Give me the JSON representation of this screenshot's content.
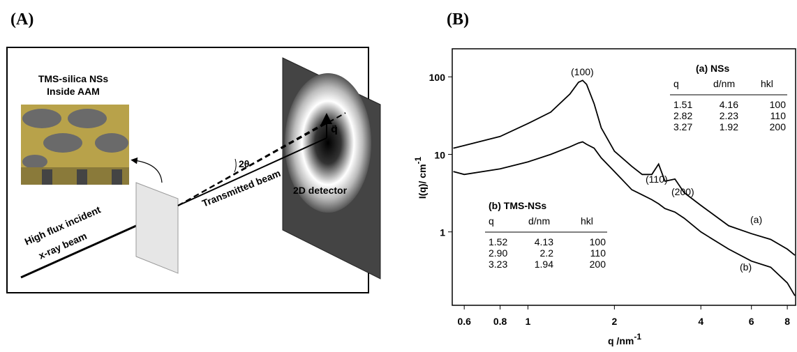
{
  "panel_a": {
    "label": "(A)",
    "sample_title": [
      "TMS-silica NSs",
      "Inside AAM"
    ],
    "incident_beam": [
      "High flux incident",
      "x-ray beam"
    ],
    "transmitted_beam": "Transmitted beam",
    "angle": "2θ",
    "q_vector": "q⃗",
    "detector": "2D detector"
  },
  "chart_data": {
    "type": "line",
    "panel_label": "(B)",
    "x_label": {
      "text": "q /nm",
      "sup": "-1"
    },
    "y_label": {
      "text": "I(q)/ cm",
      "sup": "-1"
    },
    "log_x": true,
    "log_y": true,
    "xlim": [
      0.545,
      8.55
    ],
    "ylim": [
      0.113,
      230
    ],
    "xticks": [
      0.6,
      0.8,
      1,
      2,
      4,
      6,
      8
    ],
    "yticks": [
      1,
      10,
      100
    ],
    "x": [
      0.55,
      0.6,
      0.8,
      1.0,
      1.2,
      1.4,
      1.5,
      1.55,
      1.6,
      1.7,
      1.8,
      2.0,
      2.3,
      2.5,
      2.7,
      2.85,
      3.0,
      3.25,
      3.5,
      4,
      5,
      6,
      7,
      8,
      8.5
    ],
    "series": [
      {
        "name": "(a)",
        "color": "#000000",
        "values": [
          12,
          13,
          17,
          25,
          35,
          60,
          85,
          90,
          80,
          45,
          22,
          11,
          7,
          5.5,
          5.5,
          7.5,
          4.5,
          4.8,
          3.2,
          2.2,
          1.2,
          0.95,
          0.8,
          0.6,
          0.5
        ]
      },
      {
        "name": "(b)",
        "color": "#000000",
        "values": [
          6,
          5.5,
          6.5,
          8,
          10,
          12.5,
          14,
          14.5,
          13.5,
          12,
          9,
          6,
          3.5,
          3.0,
          2.6,
          2.3,
          2.0,
          1.8,
          1.5,
          1.0,
          0.6,
          0.42,
          0.35,
          0.22,
          0.15
        ]
      }
    ],
    "peak_labels": [
      "(100)",
      "(110)",
      "(200)"
    ],
    "tables": [
      {
        "title": "(a) NSs",
        "header": [
          "q",
          "d/nm",
          "hkl"
        ],
        "rows": [
          [
            "1.51",
            "4.16",
            "100"
          ],
          [
            "2.82",
            "2.23",
            "110"
          ],
          [
            "3.27",
            "1.92",
            "200"
          ]
        ]
      },
      {
        "title": "(b) TMS-NSs",
        "header": [
          "q",
          "d/nm",
          "hkl"
        ],
        "rows": [
          [
            "1.52",
            "4.13",
            "100"
          ],
          [
            "2.90",
            "2.2",
            "110"
          ],
          [
            "3.23",
            "1.94",
            "200"
          ]
        ]
      }
    ]
  }
}
